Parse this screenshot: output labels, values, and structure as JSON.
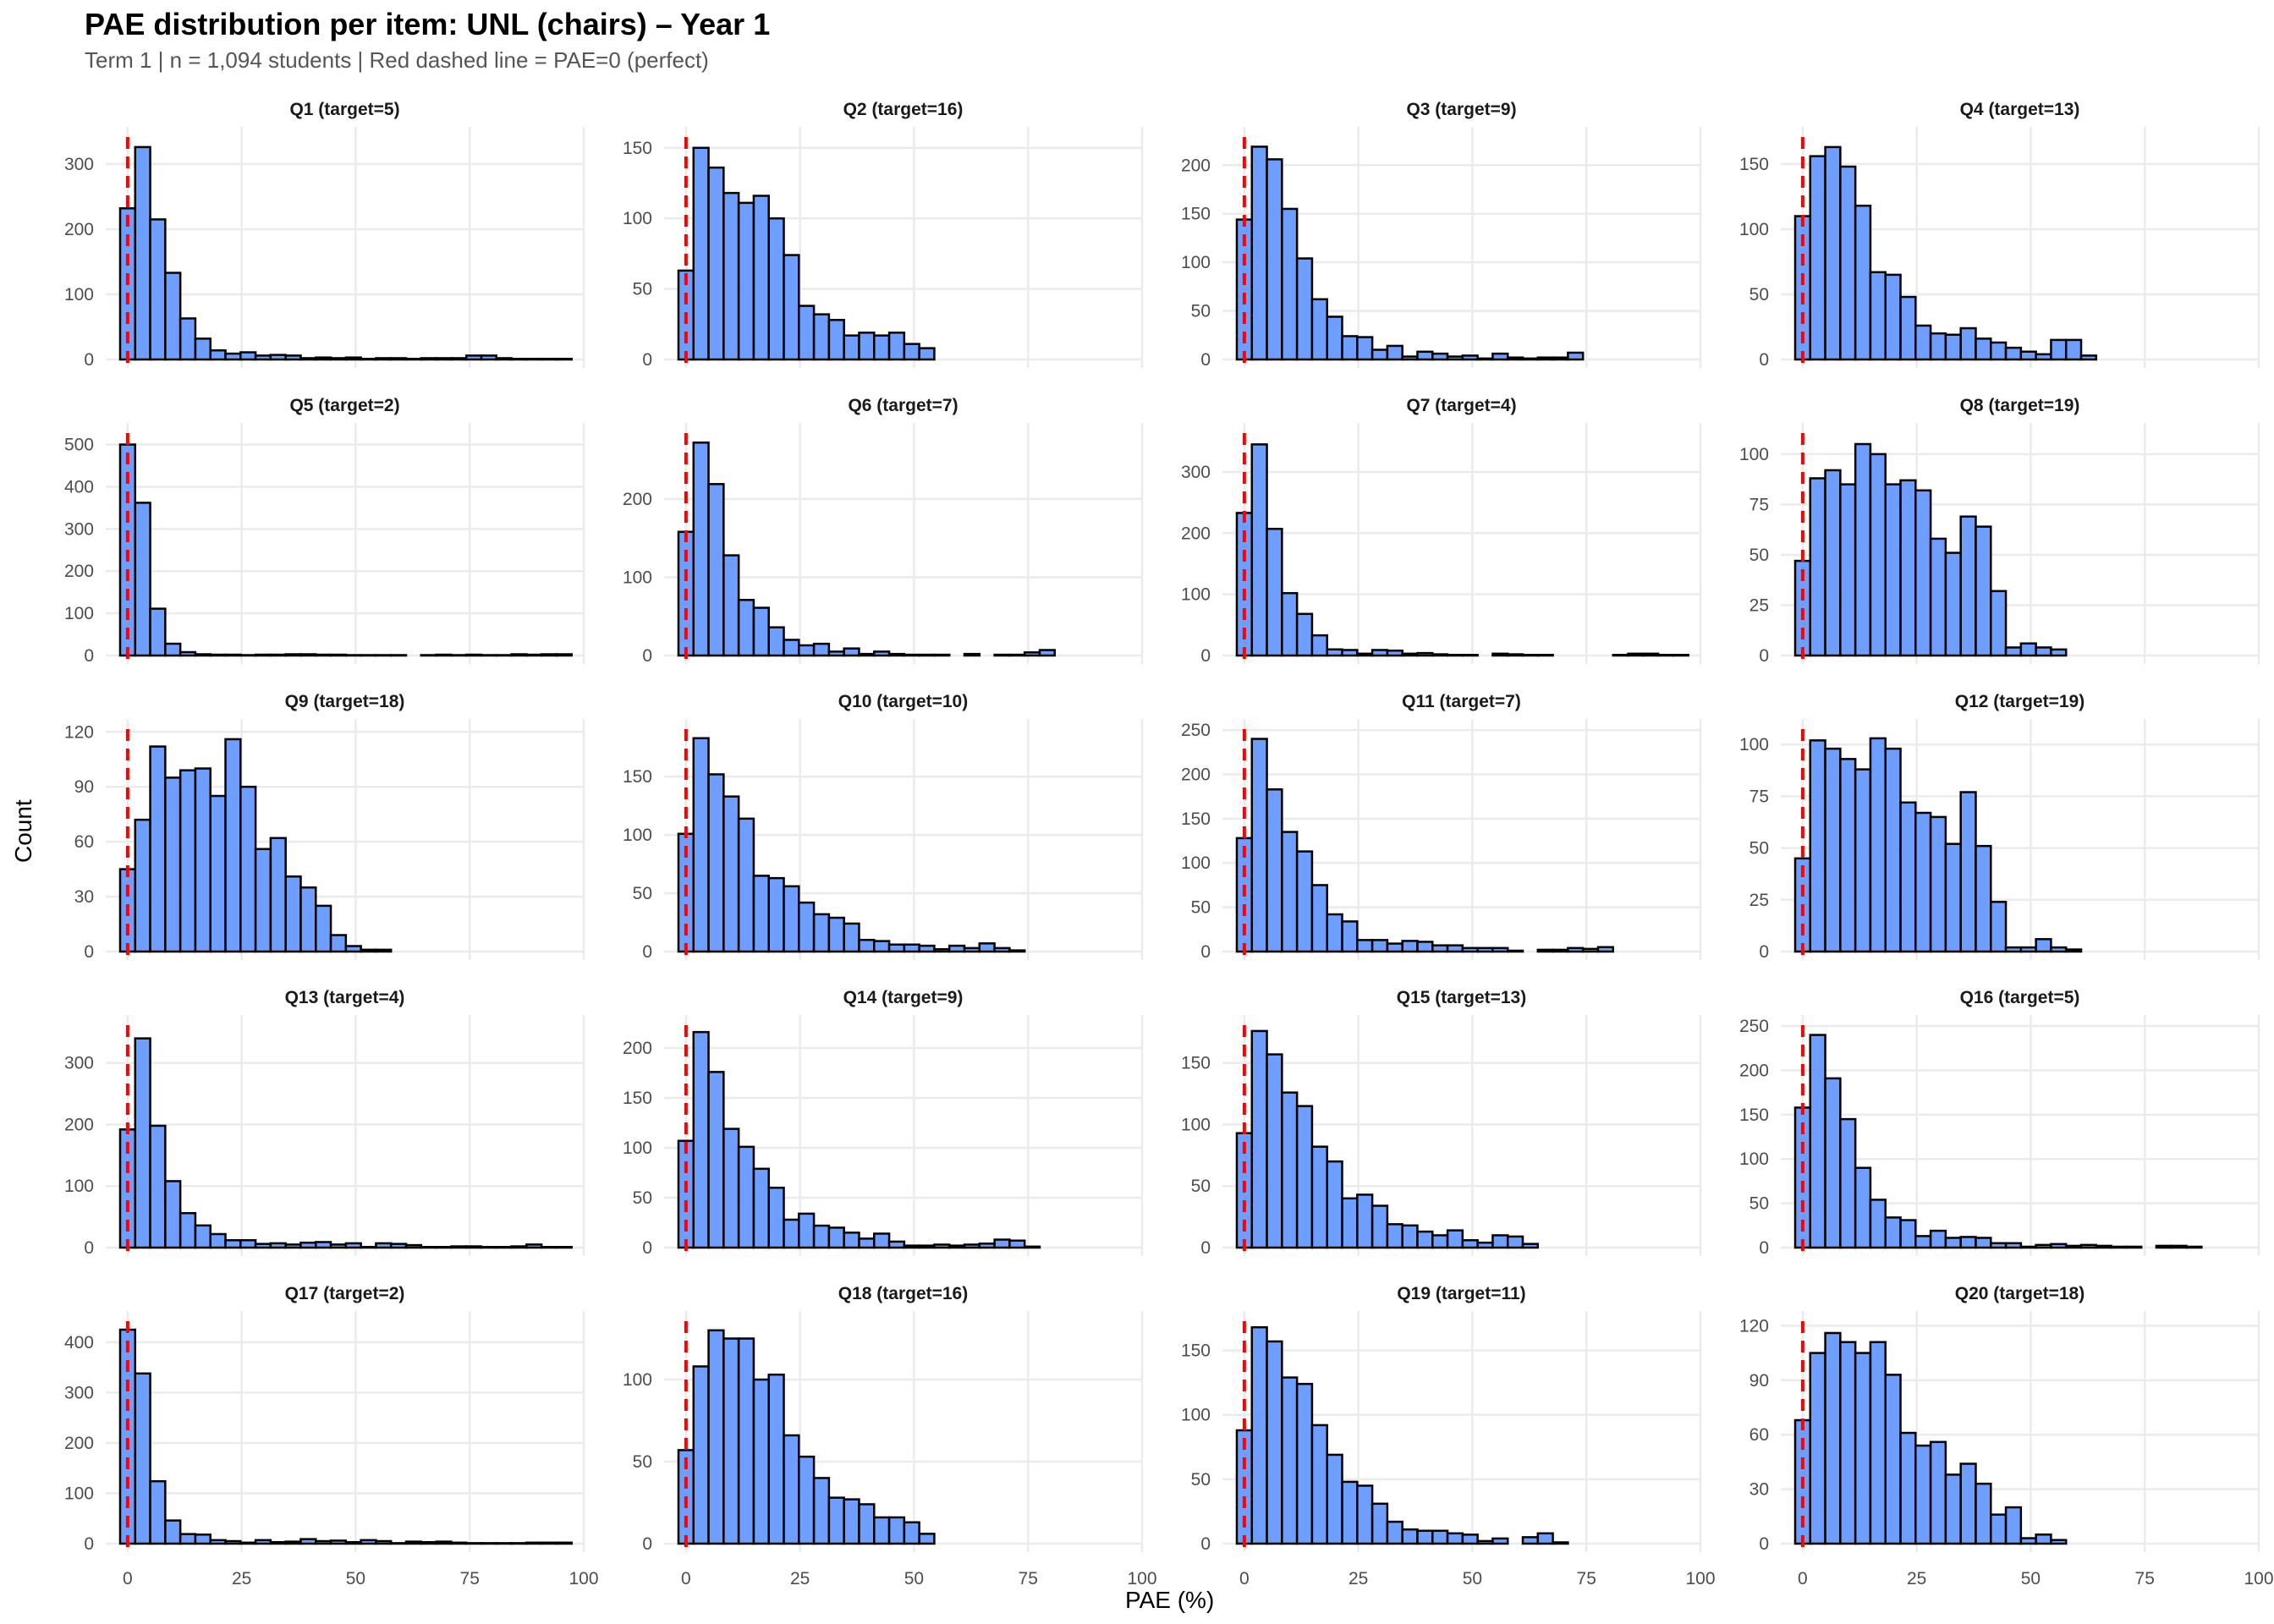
{
  "title": "PAE distribution per item: UNL (chairs) – Year 1",
  "subtitle": "Term 1 | n = 1,094 students | Red dashed line = PAE=0 (perfect)",
  "chart_data": {
    "type": "bar",
    "subtype": "faceted-histogram",
    "title": "PAE distribution per item: UNL (chairs) – Year 1",
    "subtitle": "Term 1 | n = 1,094 students | Red dashed line = PAE=0 (perfect)",
    "xlabel": "PAE (%)",
    "ylabel": "Count",
    "xlim": [
      -4,
      100
    ],
    "x_ticks": [
      0,
      25,
      50,
      75,
      100
    ],
    "bin_start": -1.65,
    "bin_width": 3.3,
    "n_bins": 30,
    "grid": true,
    "reference_line": {
      "x": 0,
      "style": "dashed",
      "color": "#ff0000",
      "label": "PAE=0 (perfect)"
    },
    "bar_fill": "#6699ff",
    "bar_edge": "#000000",
    "facet_layout": {
      "rows": 5,
      "cols": 4,
      "scales": "free_y"
    },
    "facets": [
      {
        "label": "Q1 (target=5)",
        "y_ticks": [
          0,
          100,
          200,
          300
        ],
        "ylim": [
          0,
          340
        ],
        "values": [
          232,
          326,
          215,
          133,
          63,
          32,
          14,
          9,
          11,
          6,
          7,
          6,
          2,
          3,
          2,
          3,
          1,
          2,
          2,
          1,
          2,
          2,
          2,
          6,
          6,
          2,
          1,
          1,
          1,
          1
        ]
      },
      {
        "label": "Q2 (target=16)",
        "y_ticks": [
          0,
          50,
          100,
          150
        ],
        "ylim": [
          0,
          157
        ],
        "values": [
          63,
          150,
          136,
          118,
          111,
          116,
          100,
          74,
          38,
          32,
          28,
          17,
          19,
          17,
          19,
          11,
          8,
          0,
          0,
          0,
          0,
          0,
          0,
          0,
          0,
          0,
          0,
          0,
          0,
          0
        ]
      },
      {
        "label": "Q3 (target=9)",
        "y_ticks": [
          0,
          50,
          100,
          150,
          200
        ],
        "ylim": [
          0,
          228
        ],
        "values": [
          144,
          219,
          206,
          155,
          104,
          62,
          44,
          24,
          23,
          10,
          14,
          3,
          8,
          6,
          3,
          4,
          1,
          6,
          2,
          1,
          2,
          2,
          7,
          0,
          0,
          0,
          0,
          0,
          0,
          0
        ]
      },
      {
        "label": "Q4 (target=13)",
        "y_ticks": [
          0,
          50,
          100,
          150
        ],
        "ylim": [
          0,
          170
        ],
        "values": [
          110,
          156,
          163,
          148,
          118,
          67,
          65,
          48,
          26,
          20,
          19,
          24,
          16,
          13,
          9,
          6,
          4,
          15,
          15,
          3,
          0,
          0,
          0,
          0,
          0,
          0,
          0,
          0,
          0,
          0
        ]
      },
      {
        "label": "Q5 (target=2)",
        "y_ticks": [
          0,
          100,
          200,
          300,
          400,
          500
        ],
        "ylim": [
          0,
          525
        ],
        "values": [
          500,
          362,
          111,
          28,
          8,
          3,
          2,
          2,
          1,
          2,
          2,
          3,
          3,
          2,
          2,
          1,
          1,
          1,
          1,
          0,
          1,
          2,
          1,
          2,
          1,
          1,
          3,
          2,
          3,
          3
        ]
      },
      {
        "label": "Q6 (target=7)",
        "y_ticks": [
          0,
          100,
          200
        ],
        "ylim": [
          0,
          283
        ],
        "values": [
          158,
          272,
          219,
          128,
          71,
          61,
          36,
          20,
          13,
          15,
          5,
          9,
          2,
          5,
          2,
          1,
          1,
          1,
          0,
          2,
          0,
          1,
          1,
          4,
          7,
          0,
          0,
          0,
          0,
          0
        ]
      },
      {
        "label": "Q7 (target=4)",
        "y_ticks": [
          0,
          100,
          200,
          300
        ],
        "ylim": [
          0,
          362
        ],
        "values": [
          233,
          345,
          207,
          102,
          68,
          33,
          10,
          9,
          3,
          9,
          8,
          3,
          4,
          2,
          1,
          1,
          0,
          3,
          2,
          1,
          1,
          0,
          0,
          0,
          0,
          1,
          3,
          3,
          1,
          1
        ]
      },
      {
        "label": "Q8 (target=19)",
        "y_ticks": [
          0,
          25,
          50,
          75,
          100
        ],
        "ylim": [
          0,
          110
        ],
        "values": [
          47,
          88,
          92,
          85,
          105,
          100,
          85,
          87,
          82,
          58,
          51,
          69,
          64,
          32,
          4,
          6,
          4,
          3,
          0,
          0,
          0,
          0,
          0,
          0,
          0,
          0,
          0,
          0,
          0,
          0
        ]
      },
      {
        "label": "Q9 (target=18)",
        "y_ticks": [
          0,
          30,
          60,
          90,
          120
        ],
        "ylim": [
          0,
          121
        ],
        "values": [
          45,
          72,
          112,
          95,
          99,
          100,
          85,
          116,
          90,
          56,
          62,
          41,
          35,
          25,
          9,
          3,
          1,
          1,
          0,
          0,
          0,
          0,
          0,
          0,
          0,
          0,
          0,
          0,
          0,
          0
        ]
      },
      {
        "label": "Q10 (target=10)",
        "y_ticks": [
          0,
          50,
          100,
          150
        ],
        "ylim": [
          0,
          190
        ],
        "values": [
          101,
          183,
          152,
          133,
          114,
          65,
          63,
          56,
          42,
          32,
          29,
          24,
          10,
          9,
          6,
          6,
          5,
          2,
          5,
          3,
          7,
          3,
          1,
          0,
          0,
          0,
          0,
          0,
          0,
          0
        ]
      },
      {
        "label": "Q11 (target=7)",
        "y_ticks": [
          0,
          50,
          100,
          150,
          200,
          250
        ],
        "ylim": [
          0,
          250
        ],
        "values": [
          128,
          240,
          183,
          135,
          113,
          75,
          42,
          34,
          13,
          13,
          9,
          12,
          11,
          7,
          7,
          4,
          4,
          4,
          1,
          0,
          2,
          2,
          4,
          3,
          5,
          0,
          0,
          0,
          0,
          0
        ]
      },
      {
        "label": "Q12 (target=19)",
        "y_ticks": [
          0,
          25,
          50,
          75,
          100
        ],
        "ylim": [
          0,
          107
        ],
        "values": [
          45,
          102,
          98,
          93,
          88,
          103,
          98,
          72,
          67,
          65,
          52,
          77,
          51,
          24,
          2,
          2,
          6,
          2,
          1,
          0,
          0,
          0,
          0,
          0,
          0,
          0,
          0,
          0,
          0,
          0
        ]
      },
      {
        "label": "Q13 (target=4)",
        "y_ticks": [
          0,
          100,
          200,
          300
        ],
        "ylim": [
          0,
          360
        ],
        "values": [
          192,
          340,
          198,
          108,
          56,
          36,
          22,
          12,
          12,
          6,
          7,
          5,
          8,
          9,
          5,
          7,
          1,
          7,
          6,
          4,
          1,
          1,
          2,
          2,
          1,
          1,
          2,
          5,
          1,
          1
        ]
      },
      {
        "label": "Q14 (target=9)",
        "y_ticks": [
          0,
          50,
          100,
          150,
          200
        ],
        "ylim": [
          0,
          222
        ],
        "values": [
          107,
          216,
          176,
          119,
          101,
          79,
          60,
          28,
          34,
          22,
          20,
          15,
          9,
          14,
          6,
          2,
          2,
          3,
          2,
          3,
          4,
          8,
          7,
          1,
          0,
          0,
          0,
          0,
          0,
          0
        ]
      },
      {
        "label": "Q15 (target=13)",
        "y_ticks": [
          0,
          50,
          100,
          150
        ],
        "ylim": [
          0,
          180
        ],
        "values": [
          93,
          176,
          157,
          126,
          115,
          82,
          70,
          40,
          43,
          34,
          19,
          18,
          13,
          10,
          14,
          6,
          4,
          10,
          9,
          3,
          0,
          0,
          0,
          0,
          0,
          0,
          0,
          0,
          0,
          0
        ]
      },
      {
        "label": "Q16 (target=5)",
        "y_ticks": [
          0,
          50,
          100,
          150,
          200,
          250
        ],
        "ylim": [
          0,
          250
        ],
        "values": [
          158,
          240,
          191,
          145,
          90,
          54,
          34,
          31,
          13,
          19,
          11,
          12,
          11,
          5,
          5,
          1,
          3,
          4,
          2,
          3,
          2,
          1,
          1,
          0,
          2,
          2,
          1,
          0,
          0,
          0
        ]
      },
      {
        "label": "Q17 (target=2)",
        "y_ticks": [
          0,
          100,
          200,
          300,
          400
        ],
        "ylim": [
          0,
          440
        ],
        "values": [
          425,
          338,
          124,
          46,
          19,
          18,
          7,
          5,
          2,
          7,
          3,
          4,
          9,
          5,
          6,
          3,
          7,
          5,
          1,
          4,
          3,
          4,
          2,
          1,
          1,
          1,
          1,
          2,
          2,
          2
        ]
      },
      {
        "label": "Q18 (target=16)",
        "y_ticks": [
          0,
          50,
          100
        ],
        "ylim": [
          0,
          135
        ],
        "values": [
          57,
          108,
          130,
          125,
          125,
          100,
          103,
          66,
          53,
          40,
          28,
          27,
          24,
          16,
          16,
          13,
          6,
          0,
          0,
          0,
          0,
          0,
          0,
          0,
          0,
          0,
          0,
          0,
          0,
          0
        ]
      },
      {
        "label": "Q19 (target=11)",
        "y_ticks": [
          0,
          50,
          100,
          150
        ],
        "ylim": [
          0,
          172
        ],
        "values": [
          88,
          168,
          157,
          129,
          124,
          92,
          69,
          48,
          45,
          31,
          17,
          11,
          10,
          10,
          8,
          7,
          2,
          4,
          0,
          5,
          8,
          1,
          0,
          0,
          0,
          0,
          0,
          0,
          0,
          0
        ]
      },
      {
        "label": "Q20 (target=18)",
        "y_ticks": [
          0,
          30,
          60,
          90,
          120
        ],
        "ylim": [
          0,
          122
        ],
        "values": [
          68,
          105,
          116,
          111,
          105,
          111,
          93,
          61,
          54,
          56,
          38,
          44,
          33,
          16,
          20,
          3,
          5,
          2,
          0,
          0,
          0,
          0,
          0,
          0,
          0,
          0,
          0,
          0,
          0,
          0
        ]
      }
    ]
  }
}
